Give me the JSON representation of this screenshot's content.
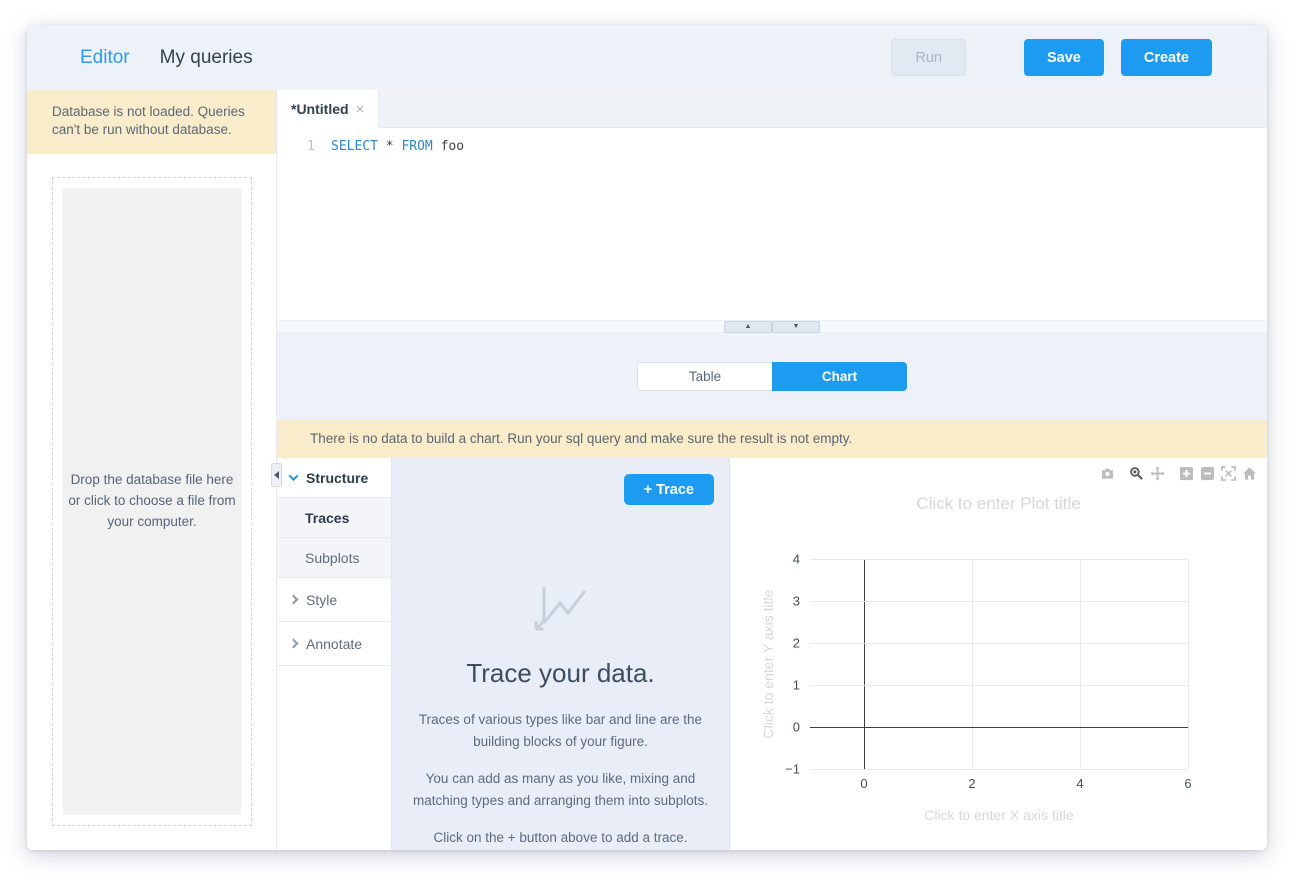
{
  "header": {
    "nav_editor": "Editor",
    "nav_my_queries": "My queries",
    "run_label": "Run",
    "save_label": "Save",
    "create_label": "Create"
  },
  "sidebar": {
    "warning": "Database is not loaded. Queries can't be run without database.",
    "dropzone_text": "Drop the database file here or click to choose a file from your computer."
  },
  "editor": {
    "tab_label": "*Untitled",
    "tab_close": "×",
    "line_number": "1",
    "sql_keyword_select": "SELECT",
    "sql_star": "*",
    "sql_keyword_from": "FROM",
    "sql_identifier": "foo"
  },
  "splitter": {
    "collapse_up": "▲",
    "collapse_down": "▼"
  },
  "result": {
    "toggle_table": "Table",
    "toggle_chart": "Chart",
    "active_view": "Chart",
    "warning": "There is no data to build a chart. Run your sql query and make sure the result is not empty."
  },
  "chart_editor": {
    "nav": {
      "structure": "Structure",
      "traces": "Traces",
      "subplots": "Subplots",
      "style": "Style",
      "annotate": "Annotate"
    },
    "active_item": "Traces",
    "trace_panel": {
      "add_trace_label": "+ Trace",
      "heading": "Trace your data.",
      "para1": "Traces of various types like bar and line are the building blocks of your figure.",
      "para2": "You can add as many as you like, mixing and matching types and arranging them into subplots.",
      "para3": "Click on the + button above to add a trace."
    },
    "modebar_icons": [
      "camera-icon",
      "zoom-icon",
      "pan-icon",
      "zoom-in-icon",
      "zoom-out-icon",
      "autoscale-icon",
      "reset-axes-icon"
    ],
    "modebar_active_icon": "zoom-icon"
  },
  "chart_data": {
    "type": "scatter",
    "series": [],
    "title": "Click to enter Plot title",
    "xlabel": "Click to enter X axis title",
    "ylabel": "Click to enter Y axis title",
    "xticks": [
      0,
      2,
      4,
      6
    ],
    "yticks": [
      4,
      3,
      2,
      1,
      0,
      -1
    ],
    "xlim": [
      -1,
      6
    ],
    "ylim": [
      -1,
      4
    ],
    "grid": true,
    "zeroline": true,
    "legend": false
  },
  "colors": {
    "accent_blue": "#1d9bf0",
    "header_bg": "#edf2f8",
    "warning_bg": "#f8ecca",
    "section_bg": "#eef2f8",
    "trace_panel_bg": "#e8edf8",
    "placeholder_text": "#d4d8de",
    "sql_keyword": "#2b86d0",
    "zeroline": "#3f3f3f",
    "gridline": "#e9e9e9"
  }
}
